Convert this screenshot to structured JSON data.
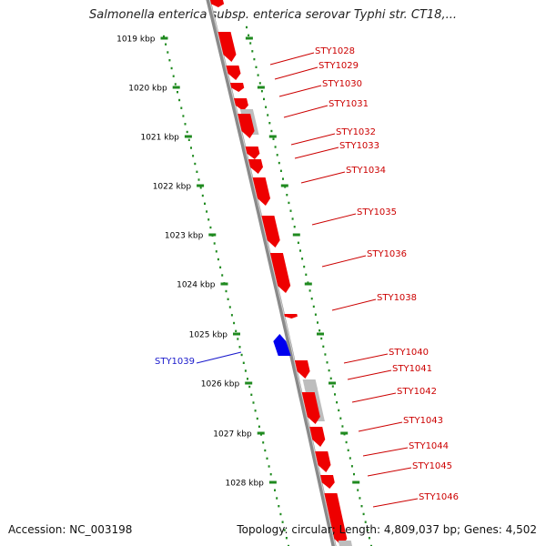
{
  "title": "Salmonella enterica subsp. enterica serovar Typhi str. CT18,...",
  "footer": {
    "accession": "Accession: NC_003198",
    "topology": "Topology: circular; Length: 4,809,037 bp; Genes: 4,502"
  },
  "colors": {
    "forward_gene": "#ee0000",
    "reverse_gene": "#0000ee",
    "gray_feature": "#bdbdbd",
    "backbone": "#8a8a8a",
    "scale_dots": "#1f8a1f",
    "forward_label": "#cc0000",
    "reverse_label": "#1a1acc"
  },
  "scale_ticks": [
    "1019 kbp",
    "1020 kbp",
    "1021 kbp",
    "1022 kbp",
    "1023 kbp",
    "1024 kbp",
    "1025 kbp",
    "1026 kbp",
    "1027 kbp",
    "1028 kbp"
  ],
  "gene_labels": [
    {
      "label": "STY1028",
      "strand": "forward"
    },
    {
      "label": "STY1029",
      "strand": "forward"
    },
    {
      "label": "STY1030",
      "strand": "forward"
    },
    {
      "label": "STY1031",
      "strand": "forward"
    },
    {
      "label": "STY1032",
      "strand": "forward"
    },
    {
      "label": "STY1033",
      "strand": "forward"
    },
    {
      "label": "STY1034",
      "strand": "forward"
    },
    {
      "label": "STY1035",
      "strand": "forward"
    },
    {
      "label": "STY1036",
      "strand": "forward"
    },
    {
      "label": "STY1038",
      "strand": "forward"
    },
    {
      "label": "STY1039",
      "strand": "reverse"
    },
    {
      "label": "STY1040",
      "strand": "forward"
    },
    {
      "label": "STY1041",
      "strand": "forward"
    },
    {
      "label": "STY1042",
      "strand": "forward"
    },
    {
      "label": "STY1043",
      "strand": "forward"
    },
    {
      "label": "STY1044",
      "strand": "forward"
    },
    {
      "label": "STY1045",
      "strand": "forward"
    },
    {
      "label": "STY1046",
      "strand": "forward"
    }
  ]
}
